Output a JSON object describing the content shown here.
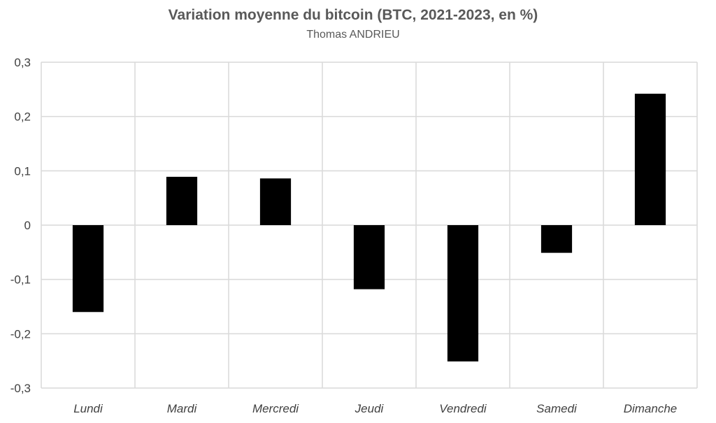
{
  "chart_data": {
    "type": "bar",
    "title": "Variation moyenne du bitcoin (BTC, 2021-2023, en %)",
    "subtitle": "Thomas ANDRIEU",
    "categories": [
      "Lundi",
      "Mardi",
      "Mercredi",
      "Jeudi",
      "Vendredi",
      "Samedi",
      "Dimanche"
    ],
    "values": [
      -0.16,
      0.089,
      0.086,
      -0.118,
      -0.251,
      -0.051,
      0.242
    ],
    "ylim": [
      -0.3,
      0.3
    ],
    "yticks": [
      0.3,
      0.2,
      0.1,
      0,
      -0.1,
      -0.2,
      -0.3
    ],
    "ytick_labels": [
      "0,3",
      "0,2",
      "0,1",
      "0",
      "-0,1",
      "-0,2",
      "-0,3"
    ],
    "xlabel": "",
    "ylabel": "",
    "grid": true,
    "legend": "none",
    "bar_color": "#000000",
    "grid_color": "#d9d9d9"
  }
}
